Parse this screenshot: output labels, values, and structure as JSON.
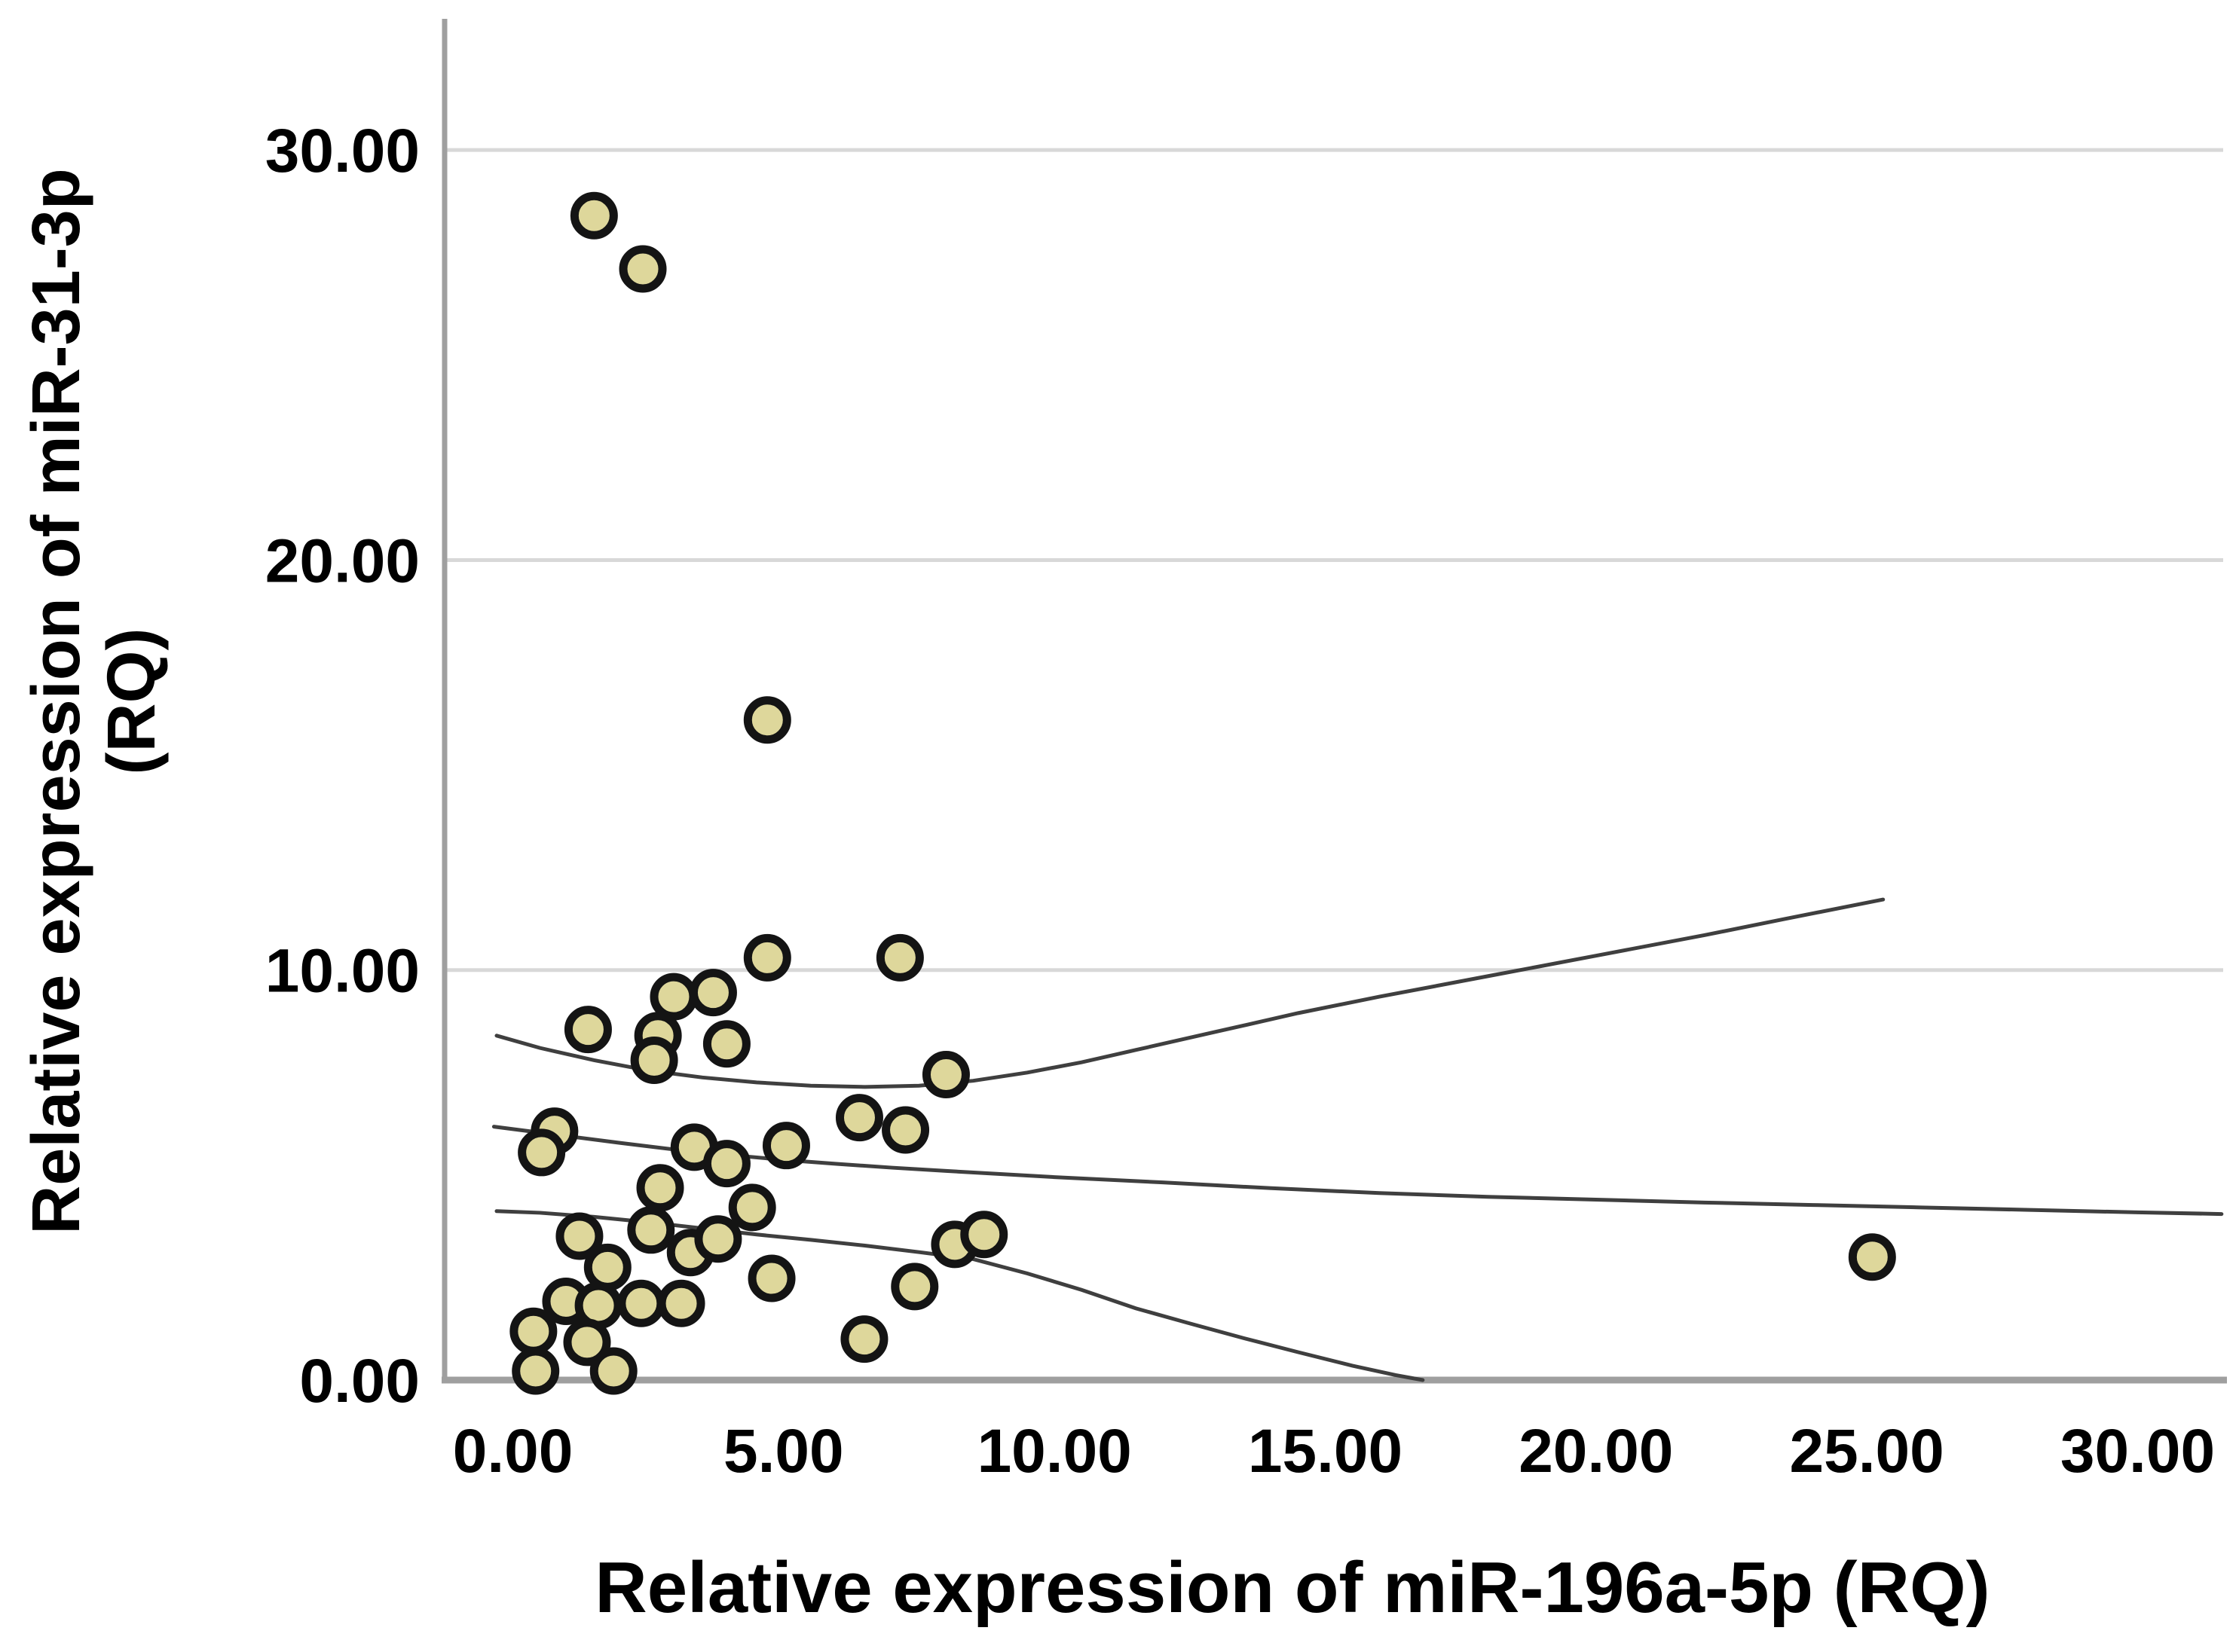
{
  "figure": {
    "background": "#ffffff"
  },
  "chart_data": {
    "type": "scatter",
    "title": "",
    "xlabel": "Relative expression of miR-196a-5p (RQ)",
    "ylabel_line1": "Relative expression of miR-31-3p",
    "ylabel_line2": "(RQ)",
    "xlim": [
      -1.26,
      31.58
    ],
    "ylim": [
      0,
      33.2
    ],
    "x_ticks": [
      0,
      5,
      10,
      15,
      20,
      25,
      30
    ],
    "x_tick_labels": [
      "0.00",
      "5.00",
      "10.00",
      "15.00",
      "20.00",
      "25.00",
      "30.00"
    ],
    "y_ticks": [
      0,
      10,
      20,
      30
    ],
    "y_tick_labels": [
      "0.00",
      "10.00",
      "20.00",
      "30.00"
    ],
    "grid": "horizontal-only",
    "legend": "none",
    "points": [
      [
        1.5,
        28.4
      ],
      [
        2.4,
        27.1
      ],
      [
        4.7,
        16.1
      ],
      [
        4.7,
        10.3
      ],
      [
        7.15,
        10.3
      ],
      [
        2.97,
        9.35
      ],
      [
        3.7,
        9.45
      ],
      [
        1.39,
        8.55
      ],
      [
        2.68,
        8.4
      ],
      [
        3.95,
        8.2
      ],
      [
        2.61,
        7.8
      ],
      [
        8.0,
        7.45
      ],
      [
        6.4,
        6.4
      ],
      [
        7.25,
        6.1
      ],
      [
        0.77,
        6.07
      ],
      [
        0.53,
        5.55
      ],
      [
        3.35,
        5.68
      ],
      [
        3.95,
        5.28
      ],
      [
        5.05,
        5.72
      ],
      [
        2.72,
        4.69
      ],
      [
        4.42,
        4.21
      ],
      [
        2.55,
        3.66
      ],
      [
        3.28,
        3.11
      ],
      [
        3.79,
        3.44
      ],
      [
        1.23,
        3.51
      ],
      [
        1.75,
        2.75
      ],
      [
        4.78,
        2.48
      ],
      [
        8.16,
        3.31
      ],
      [
        8.7,
        3.55
      ],
      [
        7.42,
        2.28
      ],
      [
        6.49,
        1.0
      ],
      [
        0.98,
        1.92
      ],
      [
        1.58,
        1.82
      ],
      [
        2.37,
        1.87
      ],
      [
        3.11,
        1.87
      ],
      [
        0.38,
        1.19
      ],
      [
        1.37,
        0.92
      ],
      [
        0.42,
        0.22
      ],
      [
        1.86,
        0.22
      ],
      [
        25.1,
        3.0
      ]
    ],
    "fit_lines": {
      "regression": [
        [
          -0.35,
          6.18
        ],
        [
          1,
          5.95
        ],
        [
          2,
          5.78
        ],
        [
          3,
          5.62
        ],
        [
          4,
          5.49
        ],
        [
          5,
          5.37
        ],
        [
          6,
          5.27
        ],
        [
          7,
          5.18
        ],
        [
          8,
          5.1
        ],
        [
          10,
          4.95
        ],
        [
          12,
          4.82
        ],
        [
          14,
          4.68
        ],
        [
          16,
          4.56
        ],
        [
          18,
          4.47
        ],
        [
          20,
          4.4
        ],
        [
          22,
          4.33
        ],
        [
          24,
          4.27
        ],
        [
          26,
          4.21
        ],
        [
          28,
          4.15
        ],
        [
          30,
          4.09
        ],
        [
          31.55,
          4.05
        ]
      ],
      "ci_upper": [
        [
          -0.3,
          8.4
        ],
        [
          0.5,
          8.1
        ],
        [
          1.5,
          7.8
        ],
        [
          2.5,
          7.55
        ],
        [
          3.5,
          7.38
        ],
        [
          4.5,
          7.26
        ],
        [
          5.5,
          7.18
        ],
        [
          6.5,
          7.15
        ],
        [
          7.5,
          7.18
        ],
        [
          8.5,
          7.3
        ],
        [
          9.5,
          7.5
        ],
        [
          10.5,
          7.75
        ],
        [
          11.5,
          8.05
        ],
        [
          13,
          8.5
        ],
        [
          14.5,
          8.95
        ],
        [
          16,
          9.35
        ],
        [
          18,
          9.85
        ],
        [
          20,
          10.35
        ],
        [
          22,
          10.85
        ],
        [
          23.5,
          11.25
        ],
        [
          25.3,
          11.72
        ]
      ],
      "ci_lower": [
        [
          -0.3,
          4.12
        ],
        [
          0.5,
          4.08
        ],
        [
          1.5,
          3.98
        ],
        [
          2.5,
          3.85
        ],
        [
          3.5,
          3.7
        ],
        [
          4.5,
          3.55
        ],
        [
          5.5,
          3.42
        ],
        [
          6.5,
          3.28
        ],
        [
          7.5,
          3.12
        ],
        [
          8.5,
          2.95
        ],
        [
          9.5,
          2.6
        ],
        [
          10.5,
          2.2
        ],
        [
          11.5,
          1.75
        ],
        [
          12.5,
          1.38
        ],
        [
          13.5,
          1.02
        ],
        [
          14.5,
          0.68
        ],
        [
          15.5,
          0.35
        ],
        [
          16.3,
          0.12
        ],
        [
          16.8,
          0.0
        ]
      ]
    },
    "colors": {
      "marker_fill": "#ded79b",
      "marker_stroke": "#141414",
      "fit_line": "#3f3f3f",
      "gridline": "#d8d8d8",
      "axis": "#9f9f9f",
      "text": "#000000"
    }
  }
}
